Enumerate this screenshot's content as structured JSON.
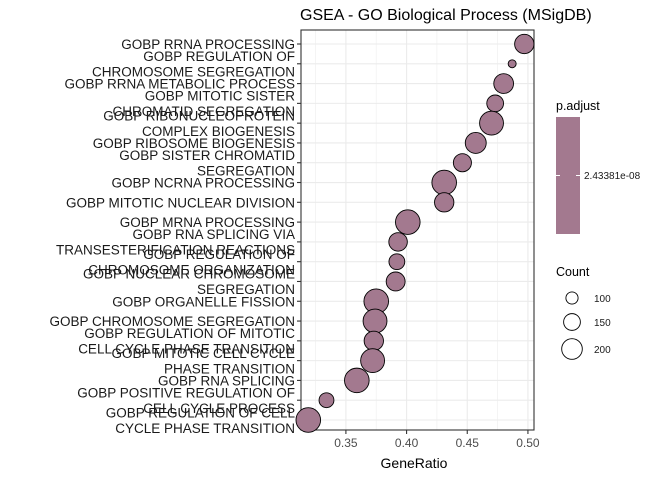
{
  "chart_data": {
    "type": "scatter",
    "title": "GSEA - GO Biological Process (MSigDB)",
    "xlabel": "GeneRatio",
    "ylabel": "",
    "xlim": [
      0.313,
      0.505
    ],
    "x_ticks": [
      0.35,
      0.4,
      0.45,
      0.5
    ],
    "x_tick_labels": [
      "0.35",
      "0.40",
      "0.45",
      "0.50"
    ],
    "grid": true,
    "color": "#A3798F",
    "terms": [
      {
        "label": [
          "GOBP RRNA PROCESSING"
        ],
        "gene_ratio": 0.497,
        "count": 170
      },
      {
        "label": [
          "GOBP REGULATION OF",
          "CHROMOSOME SEGREGATION"
        ],
        "gene_ratio": 0.487,
        "count": 60
      },
      {
        "label": [
          "GOBP RRNA METABOLIC PROCESS"
        ],
        "gene_ratio": 0.48,
        "count": 175
      },
      {
        "label": [
          "GOBP MITOTIC SISTER",
          "CHROMATID SEGREGATION"
        ],
        "gene_ratio": 0.473,
        "count": 140
      },
      {
        "label": [
          "GOBP RIBONUCLEOPROTEIN",
          "COMPLEX BIOGENESIS"
        ],
        "gene_ratio": 0.47,
        "count": 230
      },
      {
        "label": [
          "GOBP RIBOSOME BIOGENESIS"
        ],
        "gene_ratio": 0.457,
        "count": 190
      },
      {
        "label": [
          "GOBP SISTER CHROMATID",
          "SEGREGATION"
        ],
        "gene_ratio": 0.446,
        "count": 155
      },
      {
        "label": [
          "GOBP NCRNA PROCESSING"
        ],
        "gene_ratio": 0.431,
        "count": 240
      },
      {
        "label": [
          "GOBP MITOTIC NUCLEAR DIVISION"
        ],
        "gene_ratio": 0.431,
        "count": 170
      },
      {
        "label": [
          "GOBP MRNA PROCESSING"
        ],
        "gene_ratio": 0.401,
        "count": 240
      },
      {
        "label": [
          "GOBP RNA SPLICING VIA",
          "TRANSESTERIFICATION REACTIONS"
        ],
        "gene_ratio": 0.393,
        "count": 160
      },
      {
        "label": [
          "GOBP REGULATION OF",
          "CHROMOSOME ORGANIZATION"
        ],
        "gene_ratio": 0.392,
        "count": 130
      },
      {
        "label": [
          "GOBP NUCLEAR CHROMOSOME",
          "SEGREGATION"
        ],
        "gene_ratio": 0.391,
        "count": 165
      },
      {
        "label": [
          "GOBP ORGANELLE FISSION"
        ],
        "gene_ratio": 0.375,
        "count": 240
      },
      {
        "label": [
          "GOBP CHROMOSOME SEGREGATION"
        ],
        "gene_ratio": 0.374,
        "count": 230
      },
      {
        "label": [
          "GOBP REGULATION OF MITOTIC",
          "CELL CYCLE PHASE TRANSITION"
        ],
        "gene_ratio": 0.373,
        "count": 170
      },
      {
        "label": [
          "GOBP MITOTIC CELL CYCLE",
          "PHASE TRANSITION"
        ],
        "gene_ratio": 0.372,
        "count": 230
      },
      {
        "label": [
          "GOBP RNA SPLICING"
        ],
        "gene_ratio": 0.359,
        "count": 240
      },
      {
        "label": [
          "GOBP POSITIVE REGULATION OF",
          "CELL CYCLE PROCESS"
        ],
        "gene_ratio": 0.334,
        "count": 120
      },
      {
        "label": [
          "GOBP REGULATION OF CELL",
          "CYCLE PHASE TRANSITION"
        ],
        "gene_ratio": 0.319,
        "count": 240
      }
    ],
    "legend": {
      "color_title": "p.adjust",
      "color_value_label": "2.43381e-08",
      "size_title": "Count",
      "size_items": [
        {
          "label": "100",
          "count": 100
        },
        {
          "label": "150",
          "count": 150
        },
        {
          "label": "200",
          "count": 200
        }
      ]
    }
  }
}
